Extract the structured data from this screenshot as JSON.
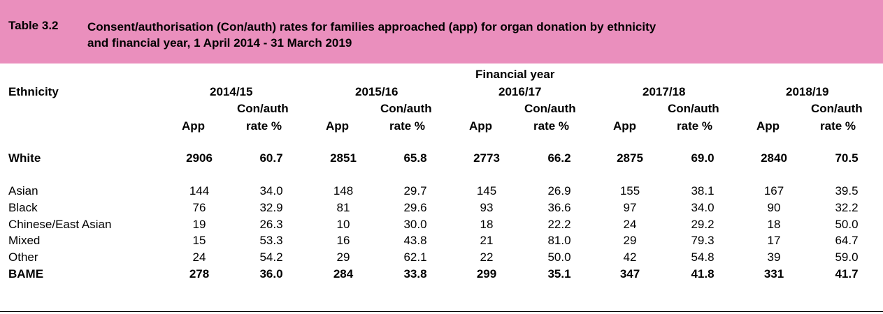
{
  "table": {
    "number": "Table 3.2",
    "title_line1": "Consent/authorisation (Con/auth) rates for families approached (app) for organ donation by ethnicity",
    "title_line2": "and financial year, 1 April 2014 - 31 March 2019"
  },
  "header": {
    "group_label": "Financial year",
    "ethnicity_label": "Ethnicity",
    "years": [
      "2014/15",
      "2015/16",
      "2016/17",
      "2017/18",
      "2018/19"
    ],
    "app_label": "App",
    "rate_label_line1": "Con/auth",
    "rate_label_line2": "rate %"
  },
  "rows": {
    "white": {
      "label": "White",
      "values": [
        "2906",
        "60.7",
        "2851",
        "65.8",
        "2773",
        "66.2",
        "2875",
        "69.0",
        "2840",
        "70.5"
      ]
    },
    "asian": {
      "label": "Asian",
      "values": [
        "144",
        "34.0",
        "148",
        "29.7",
        "145",
        "26.9",
        "155",
        "38.1",
        "167",
        "39.5"
      ]
    },
    "black": {
      "label": "Black",
      "values": [
        "76",
        "32.9",
        "81",
        "29.6",
        "93",
        "36.6",
        "97",
        "34.0",
        "90",
        "32.2"
      ]
    },
    "chinese": {
      "label": "Chinese/East Asian",
      "values": [
        "19",
        "26.3",
        "10",
        "30.0",
        "18",
        "22.2",
        "24",
        "29.2",
        "18",
        "50.0"
      ]
    },
    "mixed": {
      "label": "Mixed",
      "values": [
        "15",
        "53.3",
        "16",
        "43.8",
        "21",
        "81.0",
        "29",
        "79.3",
        "17",
        "64.7"
      ]
    },
    "other": {
      "label": "Other",
      "values": [
        "24",
        "54.2",
        "29",
        "62.1",
        "22",
        "50.0",
        "42",
        "54.8",
        "39",
        "59.0"
      ]
    },
    "bame": {
      "label": "BAME",
      "values": [
        "278",
        "36.0",
        "284",
        "33.8",
        "299",
        "35.1",
        "347",
        "41.8",
        "331",
        "41.7"
      ]
    }
  },
  "colors": {
    "title_background": "#ea8fbd"
  }
}
